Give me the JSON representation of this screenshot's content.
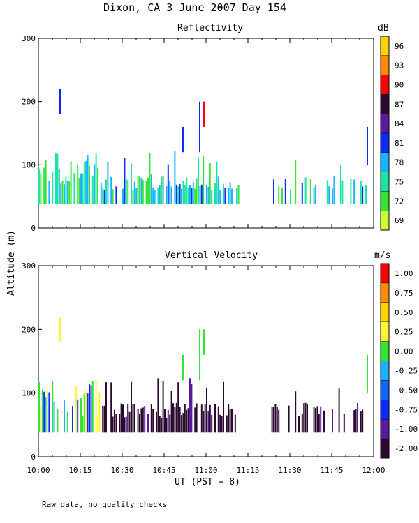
{
  "figure": {
    "title": "Dixon, CA   3 June 2007   Day 154",
    "ylabel": "Altitude (m)",
    "xlabel": "UT  (PST + 8)",
    "footnote": "Raw data, no quality checks"
  },
  "chart_data": [
    {
      "type": "heatmap",
      "title": "Reflectivity",
      "xlabel": "UT  (PST + 8)",
      "ylabel": "Altitude (m)",
      "xlim": [
        "10:00",
        "12:00"
      ],
      "ylim": [
        0,
        300
      ],
      "y_ticks": [
        "0",
        "100",
        "200",
        "300"
      ],
      "x_ticks": [
        "10:00",
        "10:15",
        "10:30",
        "10:45",
        "11:00",
        "11:15",
        "11:30",
        "11:45",
        "12:00"
      ],
      "colorbar": {
        "unit": "dB",
        "labels": [
          "96",
          "93",
          "90",
          "87",
          "84",
          "81",
          "78",
          "75",
          "72",
          "69"
        ],
        "colors": [
          "#ffd200",
          "#ff8c00",
          "#ff0000",
          "#2a0a2e",
          "#5a1aa0",
          "#0a2aff",
          "#19b4ff",
          "#19e6a0",
          "#32e632",
          "#c8ff32"
        ]
      }
    },
    {
      "type": "heatmap",
      "title": "Vertical Velocity",
      "xlabel": "UT  (PST + 8)",
      "ylabel": "Altitude (m)",
      "xlim": [
        "10:00",
        "12:00"
      ],
      "ylim": [
        0,
        300
      ],
      "y_ticks": [
        "0",
        "100",
        "200",
        "300"
      ],
      "x_ticks": [
        "10:00",
        "10:15",
        "10:30",
        "10:45",
        "11:00",
        "11:15",
        "11:30",
        "11:45",
        "12:00"
      ],
      "colorbar": {
        "unit": "m/s",
        "labels": [
          "1.00",
          "0.75",
          "0.50",
          "0.25",
          "0.00",
          "-0.25",
          "-0.50",
          "-0.75",
          "-1.00",
          "-2.00"
        ],
        "colors": [
          "#ff0000",
          "#ff8c00",
          "#ffd200",
          "#fff532",
          "#32e632",
          "#19b4ff",
          "#0a6aff",
          "#0a2aff",
          "#5a1aa0",
          "#2a0a2e"
        ]
      }
    }
  ]
}
